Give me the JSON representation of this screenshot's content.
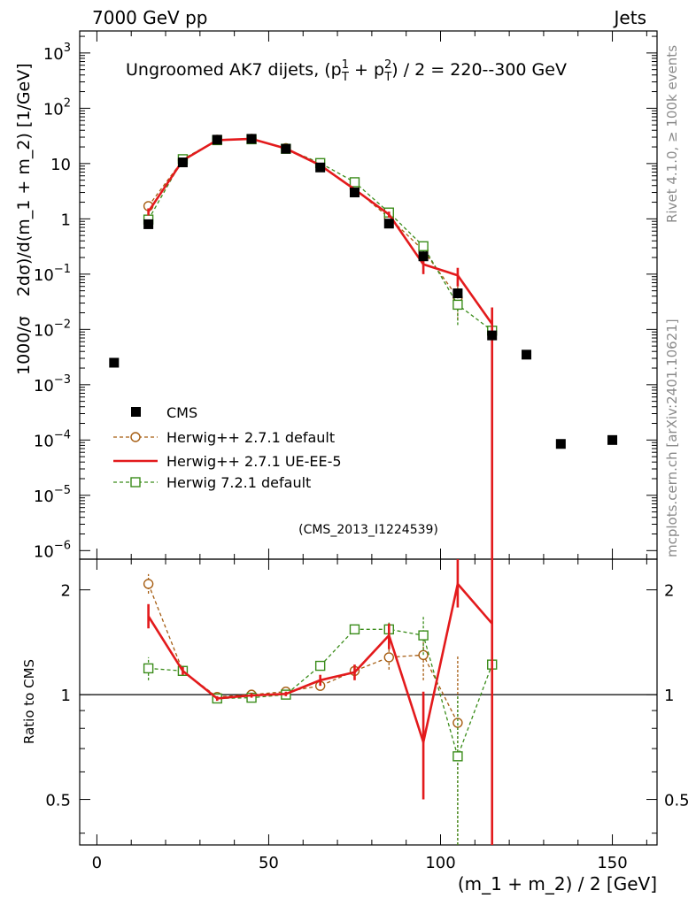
{
  "header": {
    "left": "7000 GeV pp",
    "right": "Jets"
  },
  "side_labels": {
    "rivet": "Rivet 4.1.0, ≥ 100k events",
    "mcplots": "mcplots.cern.ch [arXiv:2401.10621]"
  },
  "chart_data": [
    {
      "panel": "main",
      "type": "scatter",
      "title": "Ungroomed AK7 dijets, (p_T^1 + p_T^2) / 2 = 220--300 GeV",
      "title_parts": {
        "pre": "Ungroomed AK7 dijets, (p",
        "sup1": "1",
        "sub": "T",
        "plus": " + p",
        "sup2": "2",
        "post": ") / 2 = 220--300 GeV"
      },
      "ylabel": "1000/σ  2dσ)/d(m_1 + m_2) [1/GeV]",
      "ylabel_parts": {
        "a": "1000/σ",
        "b": "2dσ)/d(m_1 + m_2) [1/GeV]"
      },
      "yscale": "log",
      "ylim": [
        7e-07,
        2500
      ],
      "xlim": [
        -5,
        163
      ],
      "yticks": [
        {
          "v": 1e-06,
          "base": "10",
          "exp": "−6"
        },
        {
          "v": 1e-05,
          "base": "10",
          "exp": "−5"
        },
        {
          "v": 0.0001,
          "base": "10",
          "exp": "−4"
        },
        {
          "v": 0.001,
          "base": "10",
          "exp": "−3"
        },
        {
          "v": 0.01,
          "base": "10",
          "exp": "−2"
        },
        {
          "v": 0.1,
          "base": "10",
          "exp": "−1"
        },
        {
          "v": 1,
          "base": "1",
          "exp": ""
        },
        {
          "v": 10,
          "base": "10",
          "exp": ""
        },
        {
          "v": 100,
          "base": "10",
          "exp": "2"
        },
        {
          "v": 1000,
          "base": "10",
          "exp": "3"
        }
      ],
      "annotation": "(CMS_2013_I1224539)",
      "legend_position": "lower-left",
      "series": [
        {
          "name": "CMS",
          "style": "square-filled",
          "color": "#000000",
          "x": [
            5,
            15,
            25,
            35,
            45,
            55,
            65,
            75,
            85,
            95,
            105,
            115,
            125,
            135,
            150
          ],
          "y": [
            0.0025,
            0.8,
            10.5,
            27,
            28,
            18.5,
            8.5,
            3.0,
            0.82,
            0.21,
            0.045,
            0.0078,
            0.0035,
            8.5e-05,
            0.0001
          ]
        },
        {
          "name": "Herwig++ 2.7.1 default",
          "style": "circle-open-dashed",
          "color": "#a65d12",
          "x": [
            15,
            25,
            35,
            45,
            55,
            65,
            75,
            85,
            95,
            105
          ],
          "y": [
            1.7,
            11.6,
            27,
            28,
            19,
            9.0,
            3.5,
            1.05,
            0.27,
            0.038
          ],
          "err_lo": [
            1.55,
            11.2,
            26.5,
            27.5,
            18.6,
            8.7,
            3.3,
            0.92,
            0.2,
            0.015
          ],
          "err_hi": [
            1.85,
            12.0,
            27.5,
            28.5,
            19.4,
            9.3,
            3.7,
            1.18,
            0.35,
            0.06
          ]
        },
        {
          "name": "Herwig++ 2.7.1 UE-EE-5",
          "style": "line-solid",
          "color": "#e31a1c",
          "x": [
            15,
            25,
            35,
            45,
            55,
            65,
            75,
            85,
            95,
            105,
            115
          ],
          "y": [
            1.35,
            11.4,
            26.5,
            28,
            18.7,
            9.3,
            3.4,
            1.2,
            0.15,
            0.095,
            0.0125
          ],
          "err_lo": [
            1.15,
            11.0,
            26.0,
            27.5,
            18.3,
            9.0,
            3.2,
            1.05,
            0.1,
            0.06,
            2e-07
          ],
          "err_hi": [
            1.55,
            11.8,
            27.0,
            28.5,
            19.1,
            9.6,
            3.6,
            1.35,
            0.2,
            0.13,
            0.025
          ]
        },
        {
          "name": "Herwig 7.2.1 default",
          "style": "square-open-dashed",
          "color": "#3a8c1a",
          "x": [
            15,
            25,
            35,
            45,
            55,
            65,
            75,
            85,
            95,
            105,
            115
          ],
          "y": [
            0.97,
            12.0,
            26.5,
            27.5,
            18.5,
            10.2,
            4.6,
            1.3,
            0.32,
            0.028,
            0.0095
          ],
          "err_lo": [
            0.9,
            11.6,
            26.0,
            27.0,
            18.1,
            9.9,
            4.4,
            1.15,
            0.25,
            0.012,
            0.0075
          ],
          "err_hi": [
            1.04,
            12.4,
            27.0,
            28.0,
            18.9,
            10.5,
            4.8,
            1.45,
            0.39,
            0.045,
            0.0115
          ]
        }
      ]
    },
    {
      "panel": "ratio",
      "type": "line",
      "ylabel": "Ratio to CMS",
      "xlabel": "(m_1 + m_2) / 2 [GeV]",
      "yscale": "log",
      "ylim": [
        0.37,
        2.45
      ],
      "xlim": [
        -5,
        163
      ],
      "yticks": [
        0.5,
        1,
        2
      ],
      "xticks": [
        0,
        50,
        100,
        150
      ],
      "reference_line": 1,
      "series": [
        {
          "name": "Herwig++ 2.7.1 default",
          "color": "#a65d12",
          "style": "circle-open-dashed",
          "x": [
            15,
            25,
            35,
            45,
            55,
            65,
            75,
            85,
            95,
            105
          ],
          "y": [
            2.08,
            1.17,
            0.985,
            1.0,
            1.02,
            1.06,
            1.17,
            1.28,
            1.3,
            0.83
          ],
          "err_lo": [
            1.95,
            1.14,
            0.97,
            0.99,
            1.0,
            1.03,
            1.12,
            1.18,
            1.1,
            0.3
          ],
          "err_hi": [
            2.22,
            1.2,
            1.0,
            1.01,
            1.04,
            1.09,
            1.22,
            1.38,
            1.5,
            1.3
          ]
        },
        {
          "name": "Herwig++ 2.7.1 UE-EE-5",
          "color": "#e31a1c",
          "style": "line-solid",
          "x": [
            15,
            25,
            35,
            45,
            55,
            65,
            75,
            85,
            95,
            105,
            115
          ],
          "y": [
            1.68,
            1.17,
            0.975,
            0.995,
            1.005,
            1.1,
            1.16,
            1.48,
            0.73,
            2.08,
            1.6
          ],
          "err_lo": [
            1.55,
            1.14,
            0.96,
            0.98,
            0.99,
            1.06,
            1.1,
            1.35,
            0.5,
            1.78,
            0.1
          ],
          "err_hi": [
            1.82,
            1.2,
            0.99,
            1.01,
            1.02,
            1.14,
            1.22,
            1.6,
            1.02,
            2.45,
            3.0
          ]
        },
        {
          "name": "Herwig 7.2.1 default",
          "color": "#3a8c1a",
          "style": "square-open-dashed",
          "x": [
            15,
            25,
            35,
            45,
            55,
            65,
            75,
            85,
            95,
            105,
            115
          ],
          "y": [
            1.19,
            1.17,
            0.975,
            0.98,
            1.0,
            1.21,
            1.54,
            1.54,
            1.48,
            0.665,
            1.22
          ],
          "err_lo": [
            1.1,
            1.14,
            0.96,
            0.97,
            0.99,
            1.18,
            1.5,
            1.45,
            1.3,
            0.3,
            1.2
          ],
          "err_hi": [
            1.28,
            1.2,
            0.99,
            0.99,
            1.01,
            1.24,
            1.58,
            1.63,
            1.68,
            1.0,
            1.24
          ]
        }
      ]
    }
  ]
}
